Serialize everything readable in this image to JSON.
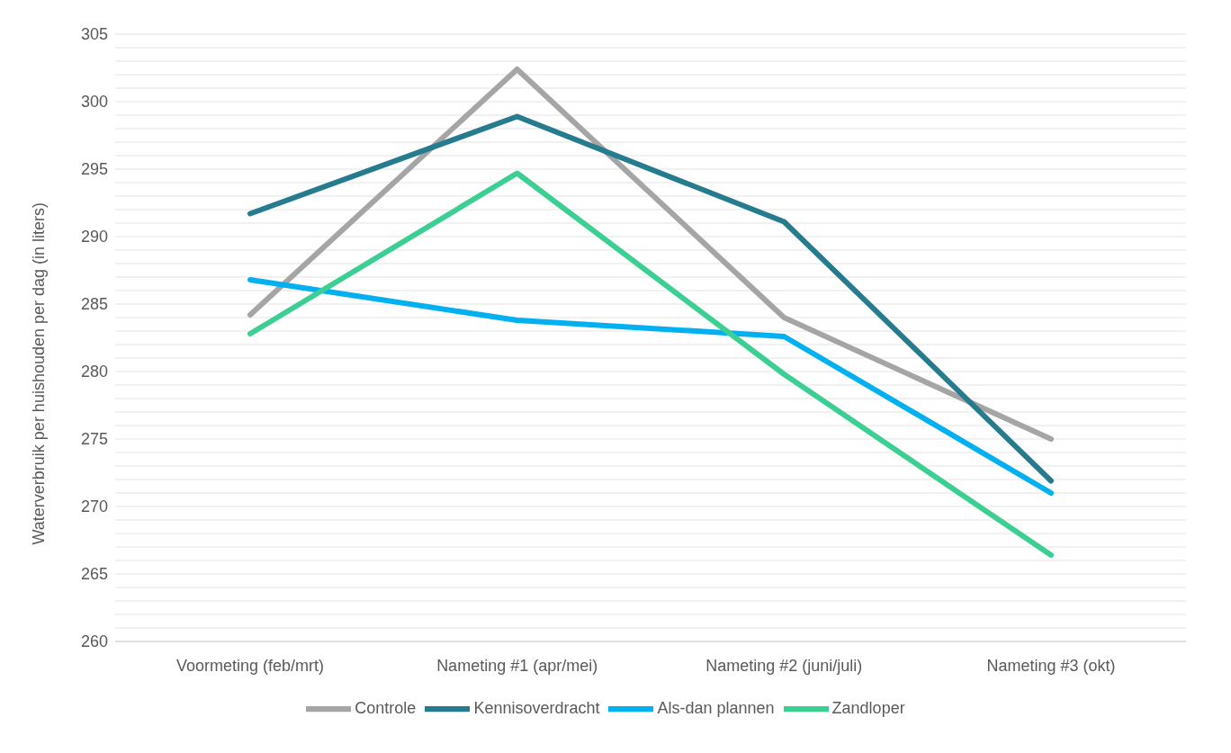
{
  "chart_data": {
    "type": "line",
    "ylabel": "Waterverbruik per huishouden per dag (in liters)",
    "categories": [
      "Voormeting (feb/mrt)",
      "Nameting #1 (apr/mei)",
      "Nameting #2 (juni/juli)",
      "Nameting #3 (okt)"
    ],
    "series": [
      {
        "name": "Controle",
        "color": "#a5a5a5",
        "values": [
          284.2,
          302.4,
          284.0,
          275.0
        ]
      },
      {
        "name": "Kennisoverdracht",
        "color": "#267b8f",
        "values": [
          291.7,
          298.9,
          291.1,
          271.9
        ]
      },
      {
        "name": "Als-dan plannen",
        "color": "#00b0f0",
        "values": [
          286.8,
          283.8,
          282.6,
          271.0
        ]
      },
      {
        "name": "Zandloper",
        "color": "#3ccf94",
        "values": [
          282.8,
          294.7,
          279.8,
          266.4
        ]
      }
    ],
    "ylim": [
      260,
      305
    ],
    "yticks": [
      260,
      {
        "value": 261,
        "label": null
      },
      {
        "value": 262,
        "label": null
      },
      {
        "value": 263,
        "label": null
      },
      {
        "value": 264,
        "label": null
      },
      265,
      {
        "value": 266,
        "label": null
      },
      {
        "value": 267,
        "label": null
      },
      {
        "value": 268,
        "label": null
      },
      {
        "value": 269,
        "label": null
      },
      270,
      {
        "value": 271,
        "label": null
      },
      {
        "value": 272,
        "label": null
      },
      {
        "value": 273,
        "label": null
      },
      {
        "value": 274,
        "label": null
      },
      275,
      {
        "value": 276,
        "label": null
      },
      {
        "value": 277,
        "label": null
      },
      {
        "value": 278,
        "label": null
      },
      {
        "value": 279,
        "label": null
      },
      280,
      {
        "value": 281,
        "label": null
      },
      {
        "value": 282,
        "label": null
      },
      {
        "value": 283,
        "label": null
      },
      {
        "value": 284,
        "label": null
      },
      285,
      {
        "value": 286,
        "label": null
      },
      {
        "value": 287,
        "label": null
      },
      {
        "value": 288,
        "label": null
      },
      {
        "value": 289,
        "label": null
      },
      290,
      {
        "value": 291,
        "label": null
      },
      {
        "value": 292,
        "label": null
      },
      {
        "value": 293,
        "label": null
      },
      {
        "value": 294,
        "label": null
      },
      295,
      {
        "value": 296,
        "label": null
      },
      {
        "value": 297,
        "label": null
      },
      {
        "value": 298,
        "label": null
      },
      {
        "value": 299,
        "label": null
      },
      300,
      {
        "value": 301,
        "label": null
      },
      {
        "value": 302,
        "label": null
      },
      {
        "value": 303,
        "label": null
      },
      {
        "value": 304,
        "label": null
      },
      305
    ],
    "grid": "y",
    "legend": "bottom",
    "marker": "none",
    "line_style": "solid"
  }
}
